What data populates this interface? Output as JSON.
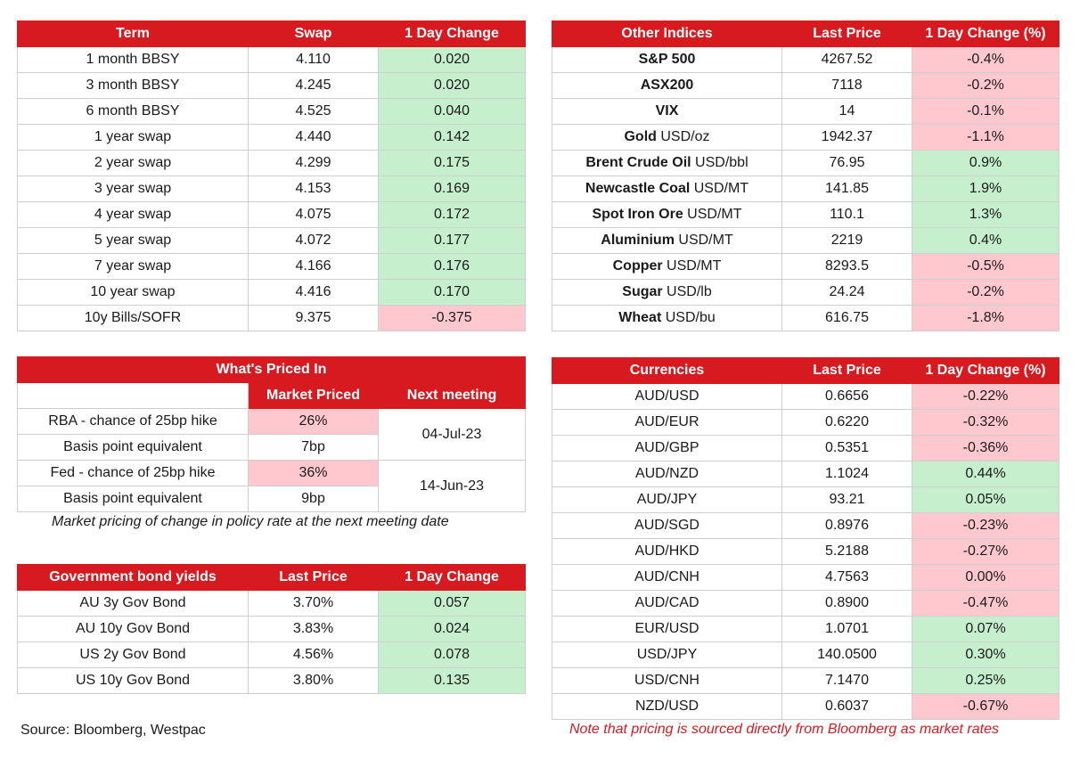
{
  "swaps": {
    "headers": [
      "Term",
      "Swap",
      "1 Day Change"
    ],
    "rows": [
      {
        "term": "1 month BBSY",
        "swap": "4.110",
        "change": "0.020",
        "dir": "pos"
      },
      {
        "term": "3 month BBSY",
        "swap": "4.245",
        "change": "0.020",
        "dir": "pos"
      },
      {
        "term": "6 month BBSY",
        "swap": "4.525",
        "change": "0.040",
        "dir": "pos"
      },
      {
        "term": "1 year swap",
        "swap": "4.440",
        "change": "0.142",
        "dir": "pos"
      },
      {
        "term": "2 year swap",
        "swap": "4.299",
        "change": "0.175",
        "dir": "pos"
      },
      {
        "term": "3 year swap",
        "swap": "4.153",
        "change": "0.169",
        "dir": "pos"
      },
      {
        "term": "4 year swap",
        "swap": "4.075",
        "change": "0.172",
        "dir": "pos"
      },
      {
        "term": "5 year swap",
        "swap": "4.072",
        "change": "0.177",
        "dir": "pos"
      },
      {
        "term": "7 year swap",
        "swap": "4.166",
        "change": "0.176",
        "dir": "pos"
      },
      {
        "term": "10 year swap",
        "swap": "4.416",
        "change": "0.170",
        "dir": "pos"
      },
      {
        "term": "10y Bills/SOFR",
        "swap": "9.375",
        "change": "-0.375",
        "dir": "neg"
      }
    ]
  },
  "indices": {
    "headers": [
      "Other Indices",
      "Last Price",
      "1 Day Change (%)"
    ],
    "rows": [
      {
        "name": "S&P 500",
        "unit": "",
        "price": "4267.52",
        "change": "-0.4%",
        "dir": "neg"
      },
      {
        "name": "ASX200",
        "unit": "",
        "price": "7118",
        "change": "-0.2%",
        "dir": "neg"
      },
      {
        "name": "VIX",
        "unit": "",
        "price": "14",
        "change": "-0.1%",
        "dir": "neg"
      },
      {
        "name": "Gold",
        "unit": " USD/oz",
        "price": "1942.37",
        "change": "-1.1%",
        "dir": "neg"
      },
      {
        "name": "Brent Crude Oil",
        "unit": " USD/bbl",
        "price": "76.95",
        "change": "0.9%",
        "dir": "pos"
      },
      {
        "name": "Newcastle Coal",
        "unit": " USD/MT",
        "price": "141.85",
        "change": "1.9%",
        "dir": "pos"
      },
      {
        "name": "Spot Iron Ore",
        "unit": " USD/MT",
        "price": "110.1",
        "change": "1.3%",
        "dir": "pos"
      },
      {
        "name": "Aluminium",
        "unit": " USD/MT",
        "price": "2219",
        "change": "0.4%",
        "dir": "pos"
      },
      {
        "name": "Copper",
        "unit": " USD/MT",
        "price": "8293.5",
        "change": "-0.5%",
        "dir": "neg"
      },
      {
        "name": "Sugar",
        "unit": " USD/lb",
        "price": "24.24",
        "change": "-0.2%",
        "dir": "neg"
      },
      {
        "name": "Wheat",
        "unit": " USD/bu",
        "price": "616.75",
        "change": "-1.8%",
        "dir": "neg"
      }
    ]
  },
  "priced_in": {
    "title": "What's Priced In",
    "headers": [
      "Market Priced",
      "Next meeting"
    ],
    "rows": [
      {
        "label": "RBA - chance of 25bp hike",
        "value": "26%",
        "dir": "neg"
      },
      {
        "label": "Basis point equivalent",
        "value": "7bp",
        "dir": ""
      },
      {
        "label": "Fed - chance of 25bp hike",
        "value": "36%",
        "dir": "neg"
      },
      {
        "label": "Basis point equivalent",
        "value": "9bp",
        "dir": ""
      }
    ],
    "meetings": [
      "04-Jul-23",
      "14-Jun-23"
    ],
    "note": "Market pricing of change in policy rate at the next meeting date"
  },
  "bonds": {
    "headers": [
      "Government bond yields",
      "Last Price",
      "1 Day Change"
    ],
    "rows": [
      {
        "name": "AU 3y Gov Bond",
        "price": "3.70%",
        "change": "0.057",
        "dir": "pos"
      },
      {
        "name": "AU 10y Gov Bond",
        "price": "3.83%",
        "change": "0.024",
        "dir": "pos"
      },
      {
        "name": "US 2y Gov Bond",
        "price": "4.56%",
        "change": "0.078",
        "dir": "pos"
      },
      {
        "name": "US 10y Gov Bond",
        "price": "3.80%",
        "change": "0.135",
        "dir": "pos"
      }
    ]
  },
  "currencies": {
    "headers": [
      "Currencies",
      "Last Price",
      "1 Day Change (%)"
    ],
    "rows": [
      {
        "pair": "AUD/USD",
        "price": "0.6656",
        "change": "-0.22%",
        "dir": "neg"
      },
      {
        "pair": "AUD/EUR",
        "price": "0.6220",
        "change": "-0.32%",
        "dir": "neg"
      },
      {
        "pair": "AUD/GBP",
        "price": "0.5351",
        "change": "-0.36%",
        "dir": "neg"
      },
      {
        "pair": "AUD/NZD",
        "price": "1.1024",
        "change": "0.44%",
        "dir": "pos"
      },
      {
        "pair": "AUD/JPY",
        "price": "93.21",
        "change": "0.05%",
        "dir": "pos"
      },
      {
        "pair": "AUD/SGD",
        "price": "0.8976",
        "change": "-0.23%",
        "dir": "neg"
      },
      {
        "pair": "AUD/HKD",
        "price": "5.2188",
        "change": "-0.27%",
        "dir": "neg"
      },
      {
        "pair": "AUD/CNH",
        "price": "4.7563",
        "change": "0.00%",
        "dir": "neg"
      },
      {
        "pair": "AUD/CAD",
        "price": "0.8900",
        "change": "-0.47%",
        "dir": "neg"
      },
      {
        "pair": "EUR/USD",
        "price": "1.0701",
        "change": "0.07%",
        "dir": "pos"
      },
      {
        "pair": "USD/JPY",
        "price": "140.0500",
        "change": "0.30%",
        "dir": "pos"
      },
      {
        "pair": "USD/CNH",
        "price": "7.1470",
        "change": "0.25%",
        "dir": "pos"
      },
      {
        "pair": "NZD/USD",
        "price": "0.6037",
        "change": "-0.67%",
        "dir": "neg"
      }
    ]
  },
  "source": "Source: Bloomberg, Westpac",
  "pricing_note": "Note that pricing is sourced directly from Bloomberg as market rates",
  "colors": {
    "header_red": "#d71920",
    "positive_green": "#c6efce",
    "negative_pink": "#ffc7ce"
  }
}
